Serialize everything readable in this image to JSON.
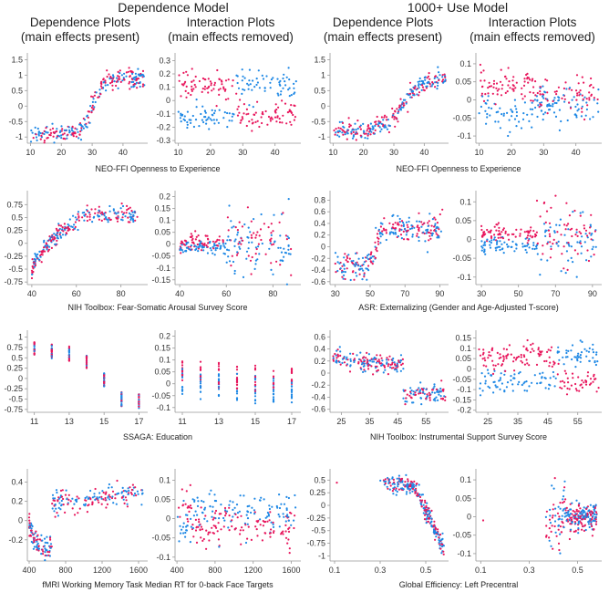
{
  "models": [
    "Dependence Model",
    "1000+ Use Model"
  ],
  "column_titles": [
    {
      "line1": "Dependence Plots",
      "line2": "(main effects present)"
    },
    {
      "line1": "Interaction Plots",
      "line2": "(main effects removed)"
    },
    {
      "line1": "Dependence Plots",
      "line2": "(main effects present)"
    },
    {
      "line1": "Interaction Plots",
      "line2": "(main effects removed)"
    }
  ],
  "row_xlabels": [
    "NEO-FFI Openness to Experience",
    "NEO-FFI Openness to Experience",
    "NIH Toolbox: Fear-Somatic Arousal Survey Score",
    "ASR: Externalizing (Gender and Age-Adjusted T-score)",
    "SSAGA: Education",
    "NIH Toolbox: Instrumental Support Survey Score",
    "fMRI Working Memory Task Median RT for 0-back Face Targets",
    "Global Efficiency: Left Precentral"
  ],
  "colors": {
    "pink": "#e8175d",
    "blue": "#1e88e5"
  },
  "chart_data": [
    {
      "type": "scatter",
      "panel": "r1c1",
      "title": "Dependence Plots (main effects present)",
      "xlabel": "NEO-FFI Openness to Experience",
      "xticks": [
        10,
        20,
        30,
        40
      ],
      "yticks": [
        -1.0,
        -0.5,
        0.0,
        0.5,
        1.0,
        1.5
      ],
      "xlim": [
        9,
        48
      ],
      "ylim": [
        -1.2,
        1.6
      ],
      "kind": "sigmoid",
      "x_range": [
        10,
        47
      ],
      "y_low": -0.9,
      "y_high": 0.9,
      "mid": 30,
      "spread": 0.15,
      "slope": 0.6
    },
    {
      "type": "scatter",
      "panel": "r1c2",
      "title": "Interaction Plots (main effects removed)",
      "xlabel": "NEO-FFI Openness to Experience",
      "xticks": [
        10,
        20,
        30,
        40
      ],
      "yticks": [
        -0.3,
        -0.2,
        -0.1,
        0.0,
        0.1,
        0.2,
        0.3
      ],
      "xlim": [
        9,
        48
      ],
      "ylim": [
        -0.32,
        0.33
      ],
      "kind": "cross",
      "x_range": [
        10,
        47
      ],
      "mid": 28,
      "amp": 0.12,
      "spread": 0.05
    },
    {
      "type": "scatter",
      "panel": "r1c3",
      "title": "Dependence Plots (main effects present)",
      "xlabel": "NEO-FFI Openness to Experience",
      "xticks": [
        10,
        20,
        30,
        40
      ],
      "yticks": [
        -1.0,
        -0.5,
        0.0,
        0.5,
        1.0,
        1.5
      ],
      "xlim": [
        9,
        48
      ],
      "ylim": [
        -1.2,
        1.6
      ],
      "kind": "sigmoid",
      "x_range": [
        10,
        47
      ],
      "y_low": -0.8,
      "y_high": 0.9,
      "mid": 33,
      "spread": 0.15,
      "slope": 0.35
    },
    {
      "type": "scatter",
      "panel": "r1c4",
      "title": "Interaction Plots (main effects removed)",
      "xlabel": "NEO-FFI Openness to Experience",
      "xticks": [
        10,
        20,
        30,
        40
      ],
      "yticks": [
        -0.1,
        -0.05,
        0.0,
        0.05,
        0.1
      ],
      "xlim": [
        9,
        48
      ],
      "ylim": [
        -0.12,
        0.12
      ],
      "kind": "split",
      "x_range": [
        10,
        47
      ],
      "mid": 27,
      "amp": 0.04,
      "spread": 0.025
    },
    {
      "type": "scatter",
      "panel": "r2c1",
      "title": "Dependence Plots (main effects present)",
      "xlabel": "NIH Toolbox: Fear-Somatic Arousal Survey Score",
      "xticks": [
        40,
        60,
        80
      ],
      "yticks": [
        -0.75,
        -0.5,
        -0.25,
        0.0,
        0.25,
        0.5,
        0.75
      ],
      "xlim": [
        38,
        92
      ],
      "ylim": [
        -0.8,
        0.95
      ],
      "kind": "rise",
      "x_range": [
        40,
        88
      ],
      "y_low": -0.65,
      "y_high": 0.55,
      "knee": 65,
      "spread": 0.08
    },
    {
      "type": "scatter",
      "panel": "r2c2",
      "title": "Interaction Plots (main effects removed)",
      "xlabel": "NIH Toolbox: Fear-Somatic Arousal Survey Score",
      "xticks": [
        40,
        60,
        80
      ],
      "yticks": [
        -0.15,
        -0.1,
        -0.05,
        0.0,
        0.05,
        0.1,
        0.15,
        0.2
      ],
      "xlim": [
        38,
        92
      ],
      "ylim": [
        -0.17,
        0.21
      ],
      "kind": "flatfan",
      "x_range": [
        40,
        88
      ],
      "mid": 60,
      "amp": 0.01,
      "spread": 0.06
    },
    {
      "type": "scatter",
      "panel": "r2c3",
      "title": "Dependence Plots (main effects present)",
      "xlabel": "ASR: Externalizing (Gender and Age-Adjusted T-score)",
      "xticks": [
        30,
        50,
        70,
        90
      ],
      "yticks": [
        -0.6,
        -0.4,
        -0.2,
        0.0,
        0.2,
        0.4,
        0.6,
        0.8
      ],
      "xlim": [
        27,
        95
      ],
      "ylim": [
        -0.65,
        0.9
      ],
      "kind": "sigmoid",
      "x_range": [
        30,
        92
      ],
      "y_low": -0.35,
      "y_high": 0.3,
      "mid": 53,
      "spread": 0.12,
      "slope": 0.6
    },
    {
      "type": "scatter",
      "panel": "r2c4",
      "title": "Interaction Plots (main effects removed)",
      "xlabel": "ASR: Externalizing (Gender and Age-Adjusted T-score)",
      "xticks": [
        30,
        50,
        70,
        90
      ],
      "yticks": [
        -0.1,
        -0.05,
        0.0,
        0.05,
        0.1
      ],
      "xlim": [
        27,
        95
      ],
      "ylim": [
        -0.12,
        0.12
      ],
      "kind": "flatfan",
      "x_range": [
        30,
        92
      ],
      "mid": 60,
      "amp": 0.015,
      "spread": 0.04
    },
    {
      "type": "scatter",
      "panel": "r3c1",
      "title": "Dependence Plots (main effects present)",
      "xlabel": "SSAGA: Education",
      "xticks": [
        11,
        13,
        15,
        17
      ],
      "yticks": [
        -0.75,
        -0.5,
        -0.25,
        0.0,
        0.25,
        0.5,
        0.75,
        1.0
      ],
      "xlim": [
        10.6,
        17.5
      ],
      "ylim": [
        -0.82,
        1.08
      ],
      "kind": "discrete",
      "levels": [
        11,
        12,
        13,
        14,
        15,
        16,
        17
      ],
      "centers": [
        0.75,
        0.65,
        0.6,
        0.4,
        -0.05,
        -0.5,
        -0.55
      ],
      "spread": 0.18
    },
    {
      "type": "scatter",
      "panel": "r3c2",
      "title": "Interaction Plots (main effects removed)",
      "xlabel": "SSAGA: Education",
      "xticks": [
        11,
        13,
        15,
        17
      ],
      "yticks": [
        -0.1,
        -0.05,
        0.0,
        0.05,
        0.1,
        0.15,
        0.2
      ],
      "xlim": [
        10.6,
        17.5
      ],
      "ylim": [
        -0.12,
        0.21
      ],
      "kind": "discrete2",
      "levels": [
        11,
        12,
        13,
        14,
        15,
        16,
        17
      ],
      "centers": [
        0.03,
        0.02,
        0.02,
        0.01,
        0.0,
        0.0,
        -0.01
      ],
      "spread": 0.06
    },
    {
      "type": "scatter",
      "panel": "r3c3",
      "title": "Dependence Plots (main effects present)",
      "xlabel": "NIH Toolbox: Instrumental Support Survey Score",
      "xticks": [
        25,
        35,
        45,
        55
      ],
      "yticks": [
        -0.6,
        -0.4,
        -0.2,
        0.0,
        0.2,
        0.4,
        0.6
      ],
      "xlim": [
        21,
        63
      ],
      "ylim": [
        -0.65,
        0.65
      ],
      "kind": "step",
      "x_range": [
        22,
        62
      ],
      "y_low": 0.25,
      "y_high": -0.35,
      "mid": 47,
      "spread": 0.08
    },
    {
      "type": "scatter",
      "panel": "r3c4",
      "title": "Interaction Plots (main effects removed)",
      "xlabel": "NIH Toolbox: Instrumental Support Survey Score",
      "xticks": [
        25,
        35,
        45,
        55
      ],
      "yticks": [
        -0.2,
        -0.15,
        -0.1,
        -0.05,
        0.0,
        0.05,
        0.1,
        0.15
      ],
      "xlim": [
        21,
        63
      ],
      "ylim": [
        -0.21,
        0.17
      ],
      "kind": "cross",
      "x_range": [
        22,
        62
      ],
      "mid": 48,
      "amp": 0.06,
      "spread": 0.03
    },
    {
      "type": "scatter",
      "panel": "r4c1",
      "title": "Dependence Plots (main effects present)",
      "xlabel": "fMRI Working Memory Task Median RT for 0-back Face Targets",
      "xticks": [
        400,
        800,
        1200,
        1600
      ],
      "yticks": [
        -0.2,
        0.0,
        0.2,
        0.4
      ],
      "xlim": [
        380,
        1700
      ],
      "ylim": [
        -0.42,
        0.5
      ],
      "kind": "dipstep",
      "x_range": [
        400,
        1650
      ],
      "spread": 0.06
    },
    {
      "type": "scatter",
      "panel": "r4c2",
      "title": "Interaction Plots (main effects removed)",
      "xlabel": "fMRI Working Memory Task Median RT for 0-back Face Targets",
      "xticks": [
        400,
        800,
        1200,
        1600
      ],
      "yticks": [
        -0.1,
        -0.05,
        0.0,
        0.05,
        0.1
      ],
      "xlim": [
        380,
        1700
      ],
      "ylim": [
        -0.11,
        0.12
      ],
      "kind": "cross",
      "x_range": [
        400,
        1650
      ],
      "mid": 560,
      "amp": 0.02,
      "spread": 0.025
    },
    {
      "type": "scatter",
      "panel": "r4c3",
      "title": "Dependence Plots (main effects present)",
      "xlabel": "Global Efficiency: Left Precentral",
      "xticks": [
        0.1,
        0.3,
        0.5
      ],
      "yticks": [
        -1.0,
        -0.75,
        -0.5,
        -0.25,
        0.0,
        0.25,
        0.5
      ],
      "xlim": [
        0.08,
        0.6
      ],
      "ylim": [
        -1.1,
        0.65
      ],
      "kind": "drop",
      "x_range": [
        0.1,
        0.58
      ],
      "spread": 0.08
    },
    {
      "type": "scatter",
      "panel": "r4c4",
      "title": "Interaction Plots (main effects removed)",
      "xlabel": "Global Efficiency: Left Precentral",
      "xticks": [
        0.1,
        0.3,
        0.5
      ],
      "yticks": [
        -0.1,
        -0.05,
        0.0,
        0.05,
        0.1
      ],
      "xlim": [
        0.08,
        0.6
      ],
      "ylim": [
        -0.12,
        0.12
      ],
      "kind": "cluster",
      "x_range": [
        0.1,
        0.58
      ],
      "spread": 0.03
    }
  ]
}
